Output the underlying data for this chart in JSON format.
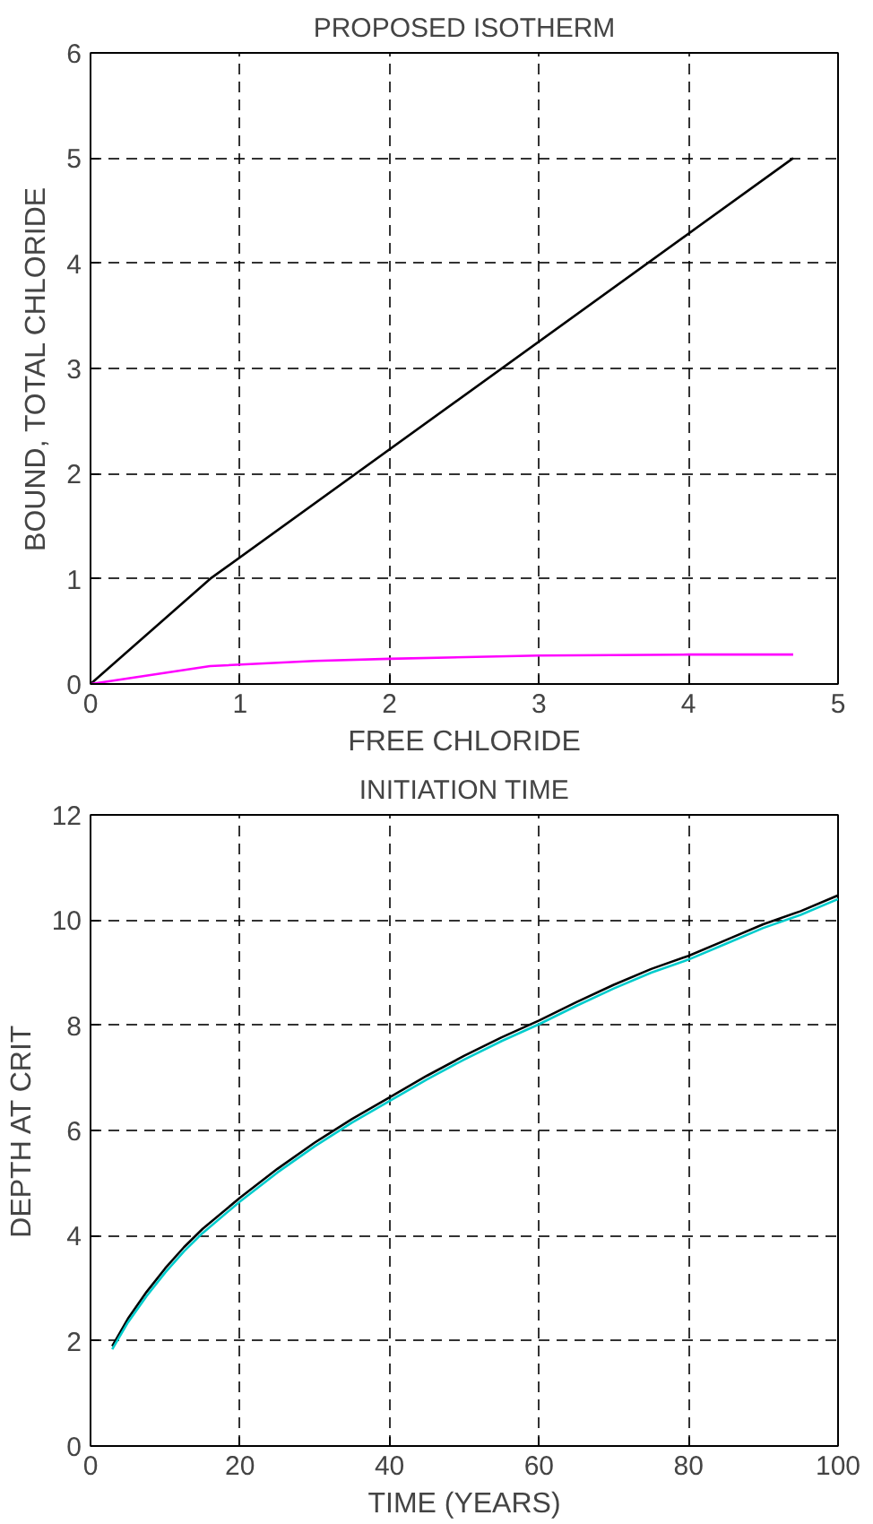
{
  "chart_data": [
    {
      "type": "line",
      "title": "PROPOSED ISOTHERM",
      "xlabel": "FREE CHLORIDE",
      "ylabel": "BOUND, TOTAL CHLORIDE",
      "xlim": [
        0,
        5
      ],
      "ylim": [
        0,
        6
      ],
      "xticks": [
        0,
        1,
        2,
        3,
        4,
        5
      ],
      "yticks": [
        0,
        1,
        2,
        3,
        4,
        5,
        6
      ],
      "grid": true,
      "line_style": "solid",
      "series": [
        {
          "color": "#000000",
          "x": [
            0,
            0.8,
            4.7
          ],
          "values": [
            0,
            1.0,
            5.0
          ]
        },
        {
          "color": "#ff00ff",
          "x": [
            0,
            0.8,
            1.5,
            2,
            3,
            4,
            4.7
          ],
          "values": [
            0,
            0.17,
            0.22,
            0.24,
            0.27,
            0.28,
            0.28
          ]
        }
      ]
    },
    {
      "type": "line",
      "title": "INITIATION TIME",
      "xlabel": "TIME (YEARS)",
      "ylabel": "DEPTH AT CRIT",
      "xlim": [
        0,
        100
      ],
      "ylim": [
        0,
        12
      ],
      "xticks": [
        0,
        20,
        40,
        60,
        80,
        100
      ],
      "yticks": [
        0,
        2,
        4,
        6,
        8,
        10,
        12
      ],
      "grid": true,
      "line_style": "solid",
      "series": [
        {
          "color": "#000000",
          "x": [
            2.9,
            5,
            7.5,
            10,
            12.5,
            15,
            20,
            25,
            30,
            35,
            40,
            45,
            50,
            55,
            60,
            65,
            70,
            75,
            80,
            85,
            90,
            95,
            100
          ],
          "values": [
            1.9,
            2.42,
            2.93,
            3.38,
            3.78,
            4.13,
            4.72,
            5.27,
            5.77,
            6.22,
            6.63,
            7.04,
            7.42,
            7.77,
            8.09,
            8.44,
            8.77,
            9.07,
            9.32,
            9.62,
            9.92,
            10.17,
            10.47
          ]
        },
        {
          "color": "#00cccc",
          "x": [
            2.9,
            5,
            7.5,
            10,
            12.5,
            15,
            20,
            25,
            30,
            35,
            40,
            45,
            50,
            55,
            60,
            65,
            70,
            75,
            80,
            85,
            90,
            95,
            100
          ],
          "values": [
            1.84,
            2.35,
            2.85,
            3.3,
            3.7,
            4.05,
            4.65,
            5.2,
            5.7,
            6.15,
            6.56,
            6.97,
            7.35,
            7.7,
            8.02,
            8.37,
            8.7,
            9.0,
            9.25,
            9.55,
            9.85,
            10.1,
            10.4
          ]
        }
      ]
    }
  ]
}
